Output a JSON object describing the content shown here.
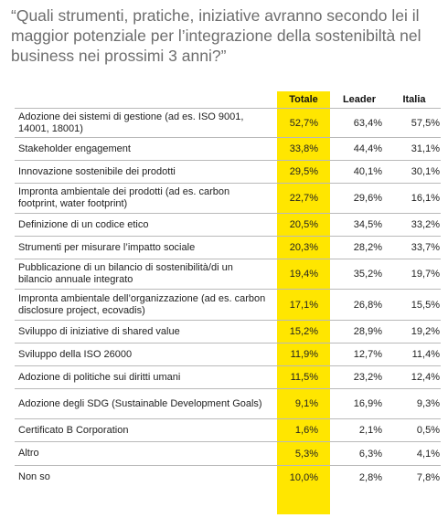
{
  "title": "“Quali strumenti, pratiche, iniziative avranno secondo lei il maggior potenziale per l’integrazione della sostenibiltà nel business nei prossimi 3 anni?”",
  "columns": {
    "totale": "Totale",
    "leader": "Leader",
    "italia": "Italia"
  },
  "rows": [
    {
      "label": "Adozione dei sistemi di gestione (ad es. ISO 9001, 14001, 18001)",
      "totale": "52,7%",
      "leader": "63,4%",
      "italia": "57,5%"
    },
    {
      "label": "Stakeholder engagement",
      "totale": "33,8%",
      "leader": "44,4%",
      "italia": "31,1%"
    },
    {
      "label": "Innovazione sostenibile dei prodotti",
      "totale": "29,5%",
      "leader": "40,1%",
      "italia": "30,1%"
    },
    {
      "label": "Impronta ambientale dei prodotti (ad es. carbon footprint, water footprint)",
      "totale": "22,7%",
      "leader": "29,6%",
      "italia": "16,1%"
    },
    {
      "label": "Definizione di un codice etico",
      "totale": "20,5%",
      "leader": "34,5%",
      "italia": "33,2%"
    },
    {
      "label": "Strumenti per misurare l’impatto sociale",
      "totale": "20,3%",
      "leader": "28,2%",
      "italia": "33,7%"
    },
    {
      "label": "Pubblicazione di un bilancio di sostenibilità/di un bilancio annuale integrato",
      "totale": "19,4%",
      "leader": "35,2%",
      "italia": "19,7%"
    },
    {
      "label": "Impronta ambientale dell’organizzazione (ad es. carbon disclosure project, ecovadis)",
      "totale": "17,1%",
      "leader": "26,8%",
      "italia": "15,5%"
    },
    {
      "label": "Sviluppo di iniziative di shared value",
      "totale": "15,2%",
      "leader": "28,9%",
      "italia": "19,2%"
    },
    {
      "label": "Sviluppo della ISO 26000",
      "totale": "11,9%",
      "leader": "12,7%",
      "italia": "11,4%"
    },
    {
      "label": "Adozione di politiche sui diritti umani",
      "totale": "11,5%",
      "leader": "23,2%",
      "italia": "12,4%"
    },
    {
      "label": "Adozione degli SDG (Sustainable Development Goals)",
      "totale": "9,1%",
      "leader": "16,9%",
      "italia": "9,3%"
    },
    {
      "label": "Certificato B Corporation",
      "totale": "1,6%",
      "leader": "2,1%",
      "italia": "0,5%"
    },
    {
      "label": "Altro",
      "totale": "5,3%",
      "leader": "6,3%",
      "italia": "4,1%"
    },
    {
      "label": "Non so",
      "totale": "10,0%",
      "leader": "2,8%",
      "italia": "7,8%"
    }
  ],
  "colors": {
    "highlight": "#ffe600",
    "title": "#6d6d6d",
    "rule": "#b9b9b9"
  }
}
